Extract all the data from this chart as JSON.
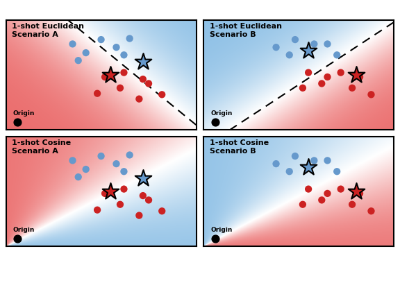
{
  "subplots": [
    {
      "label": "1-shot Euclidean\nScenario A",
      "type": "euclidean",
      "blue_dots": [
        [
          3.5,
          7.8
        ],
        [
          4.2,
          7.0
        ],
        [
          5.0,
          8.2
        ],
        [
          3.8,
          6.3
        ],
        [
          5.8,
          7.5
        ],
        [
          6.5,
          8.3
        ],
        [
          6.2,
          6.8
        ]
      ],
      "red_dots": [
        [
          5.2,
          4.8
        ],
        [
          6.2,
          5.2
        ],
        [
          7.2,
          4.6
        ],
        [
          4.8,
          3.3
        ],
        [
          6.0,
          3.8
        ],
        [
          7.5,
          4.2
        ],
        [
          7.0,
          2.8
        ],
        [
          8.2,
          3.2
        ]
      ],
      "blue_star": [
        7.2,
        6.2
      ],
      "red_star": [
        5.5,
        5.0
      ]
    },
    {
      "label": "1-shot Euclidean\nScenario B",
      "type": "euclidean",
      "blue_dots": [
        [
          4.8,
          8.2
        ],
        [
          5.8,
          7.8
        ],
        [
          4.5,
          6.8
        ],
        [
          5.5,
          7.2
        ],
        [
          7.0,
          6.8
        ],
        [
          6.5,
          7.8
        ],
        [
          3.8,
          7.5
        ]
      ],
      "red_dots": [
        [
          5.5,
          5.2
        ],
        [
          6.5,
          4.8
        ],
        [
          7.2,
          5.2
        ],
        [
          5.2,
          3.8
        ],
        [
          6.2,
          4.2
        ],
        [
          7.8,
          3.8
        ],
        [
          8.2,
          4.8
        ],
        [
          8.8,
          3.2
        ]
      ],
      "blue_star": [
        5.5,
        7.2
      ],
      "red_star": [
        8.0,
        5.0
      ]
    },
    {
      "label": "1-shot Cosine\nScenario A",
      "type": "cosine",
      "blue_dots": [
        [
          3.5,
          7.8
        ],
        [
          4.2,
          7.0
        ],
        [
          5.0,
          8.2
        ],
        [
          3.8,
          6.3
        ],
        [
          5.8,
          7.5
        ],
        [
          6.5,
          8.3
        ],
        [
          6.2,
          6.8
        ]
      ],
      "red_dots": [
        [
          5.2,
          4.8
        ],
        [
          6.2,
          5.2
        ],
        [
          7.2,
          4.6
        ],
        [
          4.8,
          3.3
        ],
        [
          6.0,
          3.8
        ],
        [
          7.5,
          4.2
        ],
        [
          7.0,
          2.8
        ],
        [
          8.2,
          3.2
        ]
      ],
      "blue_star": [
        7.2,
        6.2
      ],
      "red_star": [
        5.5,
        5.0
      ]
    },
    {
      "label": "1-shot Cosine\nScenario B",
      "type": "cosine",
      "blue_dots": [
        [
          4.8,
          8.2
        ],
        [
          5.8,
          7.8
        ],
        [
          4.5,
          6.8
        ],
        [
          5.5,
          7.2
        ],
        [
          7.0,
          6.8
        ],
        [
          6.5,
          7.8
        ],
        [
          3.8,
          7.5
        ]
      ],
      "red_dots": [
        [
          5.5,
          5.2
        ],
        [
          6.5,
          4.8
        ],
        [
          7.2,
          5.2
        ],
        [
          5.2,
          3.8
        ],
        [
          6.2,
          4.2
        ],
        [
          7.8,
          3.8
        ],
        [
          8.2,
          4.8
        ],
        [
          8.8,
          3.2
        ]
      ],
      "blue_star": [
        5.5,
        7.2
      ],
      "red_star": [
        8.0,
        5.0
      ]
    }
  ],
  "blue_dot_color": "#6699CC",
  "red_dot_color": "#CC2222",
  "bg_blue": [
    0.55,
    0.75,
    0.9
  ],
  "bg_red": [
    0.92,
    0.42,
    0.42
  ],
  "bg_white": [
    1.0,
    1.0,
    1.0
  ],
  "origin_label": "Origin",
  "xlim": [
    0,
    10
  ],
  "ylim": [
    0,
    10
  ]
}
